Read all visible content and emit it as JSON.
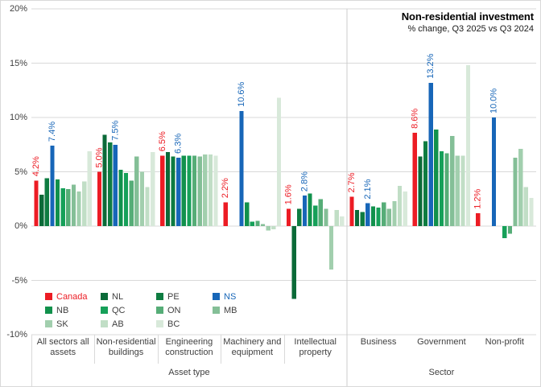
{
  "chart": {
    "title": "Non-residential investment",
    "subtitle": "% change, Q3 2025 vs Q3 2024"
  },
  "chart_data": {
    "type": "bar",
    "title": "Non-residential investment",
    "subtitle": "% change, Q3 2025 vs Q3 2024",
    "ylim": [
      -10,
      20
    ],
    "ytick_step": 5,
    "yticks": [
      {
        "value": 20,
        "label": "20%"
      },
      {
        "value": 15,
        "label": "15%"
      },
      {
        "value": 10,
        "label": "10%"
      },
      {
        "value": 5,
        "label": "5%"
      },
      {
        "value": 0,
        "label": "0%"
      },
      {
        "value": -5,
        "label": "-5%"
      },
      {
        "value": -10,
        "label": "-10%"
      }
    ],
    "grid": true,
    "gridline_color": "#d9d9d9",
    "separator_color": "#cccccc",
    "axis_text_color": "#404040",
    "legend_position": "inside-bottom-left",
    "categories": [
      "All sectors all assets",
      "Non-residential buildings",
      "Engineering construction",
      "Machinery and equipment",
      "Intellectual property",
      "Business",
      "Government",
      "Non-profit"
    ],
    "category_groups": [
      {
        "label": "Asset type",
        "span": 5
      },
      {
        "label": "Sector",
        "span": 3
      }
    ],
    "series": [
      {
        "name": "Canada",
        "color": "#ec1c24",
        "legend_text_color": "#ec1c24",
        "values": [
          4.2,
          5.0,
          6.5,
          2.2,
          1.6,
          2.7,
          8.6,
          1.2
        ],
        "data_labels": [
          "4.2%",
          "5.0%",
          "6.5%",
          "2.2%",
          "1.6%",
          "2.7%",
          "8.6%",
          "1.2%"
        ]
      },
      {
        "name": "NL",
        "color": "#0b6a38",
        "values": [
          2.9,
          8.4,
          6.8,
          null,
          -6.7,
          1.5,
          6.4,
          null
        ]
      },
      {
        "name": "PE",
        "color": "#0e7c41",
        "values": [
          4.4,
          7.7,
          6.4,
          null,
          1.6,
          1.3,
          7.8,
          null
        ]
      },
      {
        "name": "NS",
        "color": "#1766b8",
        "legend_text_color": "#1766b8",
        "values": [
          7.4,
          7.5,
          6.3,
          10.6,
          2.8,
          2.1,
          13.2,
          10.0
        ],
        "data_labels": [
          "7.4%",
          "7.5%",
          "6.3%",
          "10.6%",
          "2.8%",
          "2.1%",
          "13.2%",
          "10.0%"
        ]
      },
      {
        "name": "NB",
        "color": "#11914c",
        "values": [
          4.3,
          5.2,
          6.5,
          2.2,
          3.0,
          1.8,
          8.9,
          null
        ]
      },
      {
        "name": "QC",
        "color": "#16a059",
        "values": [
          3.5,
          4.9,
          6.5,
          0.4,
          1.9,
          1.7,
          6.9,
          -1.1
        ]
      },
      {
        "name": "ON",
        "color": "#56ad77",
        "values": [
          3.4,
          4.2,
          6.5,
          0.5,
          2.5,
          2.2,
          6.7,
          -0.7
        ]
      },
      {
        "name": "MB",
        "color": "#84bf97",
        "values": [
          3.8,
          6.4,
          6.4,
          0.2,
          1.6,
          1.6,
          8.3,
          6.3
        ]
      },
      {
        "name": "SK",
        "color": "#a2cfae",
        "values": [
          3.2,
          5.0,
          6.6,
          -0.4,
          -4.0,
          2.3,
          6.5,
          7.1
        ]
      },
      {
        "name": "AB",
        "color": "#c1dec6",
        "values": [
          4.1,
          3.6,
          6.6,
          -0.3,
          1.5,
          3.7,
          6.5,
          3.6
        ]
      },
      {
        "name": "BC",
        "color": "#d8e9da",
        "values": [
          6.9,
          6.8,
          6.5,
          11.8,
          0.9,
          3.2,
          14.8,
          2.6
        ]
      }
    ]
  }
}
